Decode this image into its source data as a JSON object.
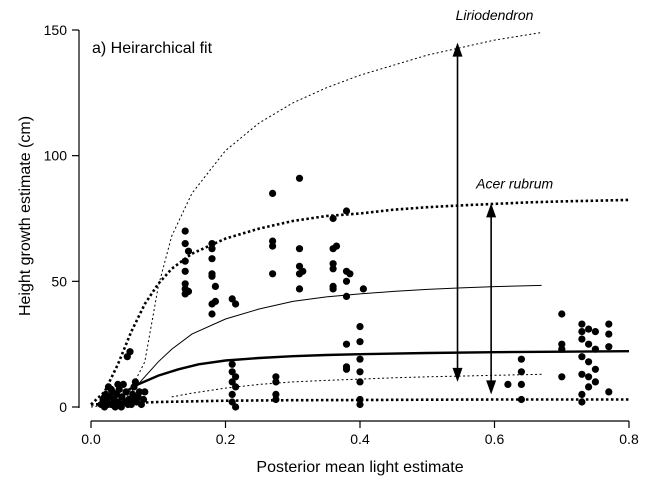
{
  "chart_data": {
    "type": "scatter",
    "title": "",
    "annotation": "a) Heirarchical fit",
    "xlabel": "Posterior mean light estimate",
    "ylabel": "Height growth estimate (cm)",
    "xlim": [
      0,
      0.8
    ],
    "ylim": [
      -5,
      150
    ],
    "xticks": [
      0.0,
      0.2,
      0.4,
      0.6,
      0.8
    ],
    "xtick_labels": [
      "0.0",
      "0.2",
      "0.4",
      "0.6",
      "0.8"
    ],
    "yticks": [
      0,
      50,
      100,
      150
    ],
    "ytick_labels": [
      "0",
      "50",
      "100",
      "150"
    ],
    "grid": false,
    "legend": "none",
    "curve_labels": [
      {
        "text": "Liriodendron",
        "x": 0.6,
        "y": 154
      },
      {
        "text": "Acer rubrum",
        "x": 0.63,
        "y": 87
      }
    ],
    "series": [
      {
        "style": "dotted-thin",
        "values": [
          [
            0.0,
            0
          ],
          [
            0.05,
            2
          ],
          [
            0.08,
            18
          ],
          [
            0.1,
            48
          ],
          [
            0.12,
            68
          ],
          [
            0.15,
            85
          ],
          [
            0.2,
            102
          ],
          [
            0.25,
            113
          ],
          [
            0.3,
            121
          ],
          [
            0.35,
            127
          ],
          [
            0.4,
            132
          ],
          [
            0.45,
            136
          ],
          [
            0.5,
            140
          ],
          [
            0.55,
            143
          ],
          [
            0.6,
            146
          ],
          [
            0.67,
            149
          ]
        ]
      },
      {
        "style": "dotted-thick",
        "values": [
          [
            0.0,
            1
          ],
          [
            0.02,
            6
          ],
          [
            0.04,
            17
          ],
          [
            0.06,
            30
          ],
          [
            0.08,
            41
          ],
          [
            0.1,
            49
          ],
          [
            0.12,
            55
          ],
          [
            0.15,
            61
          ],
          [
            0.2,
            67
          ],
          [
            0.25,
            71
          ],
          [
            0.3,
            74
          ],
          [
            0.35,
            76
          ],
          [
            0.4,
            77
          ],
          [
            0.45,
            78.5
          ],
          [
            0.5,
            79.5
          ],
          [
            0.55,
            80.2
          ],
          [
            0.6,
            80.8
          ],
          [
            0.65,
            81.4
          ],
          [
            0.7,
            81.8
          ],
          [
            0.75,
            82.1
          ],
          [
            0.8,
            82.4
          ]
        ]
      },
      {
        "style": "solid-thin",
        "values": [
          [
            0.06,
            6
          ],
          [
            0.08,
            12
          ],
          [
            0.1,
            18
          ],
          [
            0.12,
            23
          ],
          [
            0.15,
            29
          ],
          [
            0.2,
            35
          ],
          [
            0.25,
            39
          ],
          [
            0.3,
            42
          ],
          [
            0.35,
            43.8
          ],
          [
            0.4,
            45
          ],
          [
            0.45,
            46
          ],
          [
            0.5,
            46.8
          ],
          [
            0.55,
            47.4
          ],
          [
            0.6,
            47.9
          ],
          [
            0.67,
            48.4
          ]
        ]
      },
      {
        "style": "solid-thick",
        "values": [
          [
            0.05,
            6
          ],
          [
            0.07,
            9
          ],
          [
            0.1,
            12.5
          ],
          [
            0.13,
            15
          ],
          [
            0.16,
            17
          ],
          [
            0.2,
            18.5
          ],
          [
            0.25,
            19.5
          ],
          [
            0.3,
            20.2
          ],
          [
            0.35,
            20.7
          ],
          [
            0.4,
            21
          ],
          [
            0.5,
            21.5
          ],
          [
            0.6,
            21.8
          ],
          [
            0.7,
            22
          ],
          [
            0.8,
            22.2
          ]
        ]
      },
      {
        "style": "dotted-thin",
        "values": [
          [
            0.12,
            4
          ],
          [
            0.15,
            5.5
          ],
          [
            0.2,
            7.5
          ],
          [
            0.25,
            9
          ],
          [
            0.3,
            10
          ],
          [
            0.35,
            10.6
          ],
          [
            0.4,
            11.1
          ],
          [
            0.45,
            11.6
          ],
          [
            0.5,
            12
          ],
          [
            0.55,
            12.3
          ],
          [
            0.6,
            12.6
          ],
          [
            0.67,
            13
          ]
        ]
      },
      {
        "style": "dotted-thick",
        "values": [
          [
            0.0,
            1
          ],
          [
            0.1,
            2
          ],
          [
            0.2,
            2.5
          ],
          [
            0.3,
            2.7
          ],
          [
            0.4,
            2.8
          ],
          [
            0.5,
            2.9
          ],
          [
            0.6,
            3
          ],
          [
            0.7,
            3
          ],
          [
            0.8,
            3
          ]
        ]
      }
    ],
    "arrows": [
      {
        "x": 0.545,
        "y_from": 145,
        "y_to": 10
      },
      {
        "x": 0.595,
        "y_from": 81,
        "y_to": 5
      }
    ],
    "points": [
      [
        0.015,
        1
      ],
      [
        0.018,
        3
      ],
      [
        0.02,
        0
      ],
      [
        0.022,
        5
      ],
      [
        0.024,
        2
      ],
      [
        0.026,
        8
      ],
      [
        0.028,
        4
      ],
      [
        0.03,
        1
      ],
      [
        0.032,
        6
      ],
      [
        0.034,
        3
      ],
      [
        0.036,
        0
      ],
      [
        0.038,
        5
      ],
      [
        0.04,
        2
      ],
      [
        0.042,
        7
      ],
      [
        0.044,
        1
      ],
      [
        0.046,
        4
      ],
      [
        0.048,
        9
      ],
      [
        0.05,
        2
      ],
      [
        0.052,
        6
      ],
      [
        0.054,
        20
      ],
      [
        0.056,
        3
      ],
      [
        0.058,
        22
      ],
      [
        0.06,
        1
      ],
      [
        0.062,
        5
      ],
      [
        0.064,
        8
      ],
      [
        0.066,
        10
      ],
      [
        0.068,
        2
      ],
      [
        0.07,
        4
      ],
      [
        0.072,
        6
      ],
      [
        0.075,
        1
      ],
      [
        0.078,
        3
      ],
      [
        0.08,
        6
      ],
      [
        0.025,
        1
      ],
      [
        0.035,
        2
      ],
      [
        0.045,
        0
      ],
      [
        0.055,
        1
      ],
      [
        0.065,
        3
      ],
      [
        0.02,
        4
      ],
      [
        0.03,
        7
      ],
      [
        0.04,
        9
      ],
      [
        0.14,
        70
      ],
      [
        0.14,
        65
      ],
      [
        0.14,
        58
      ],
      [
        0.14,
        54
      ],
      [
        0.14,
        49
      ],
      [
        0.14,
        47
      ],
      [
        0.14,
        45
      ],
      [
        0.145,
        62
      ],
      [
        0.145,
        46
      ],
      [
        0.18,
        65
      ],
      [
        0.18,
        63
      ],
      [
        0.18,
        59
      ],
      [
        0.18,
        53
      ],
      [
        0.18,
        52
      ],
      [
        0.18,
        41
      ],
      [
        0.18,
        37
      ],
      [
        0.185,
        48
      ],
      [
        0.185,
        42
      ],
      [
        0.21,
        2
      ],
      [
        0.21,
        5
      ],
      [
        0.21,
        10
      ],
      [
        0.21,
        14
      ],
      [
        0.21,
        17
      ],
      [
        0.215,
        0
      ],
      [
        0.215,
        8
      ],
      [
        0.215,
        12
      ],
      [
        0.21,
        43
      ],
      [
        0.215,
        41
      ],
      [
        0.27,
        85
      ],
      [
        0.27,
        66
      ],
      [
        0.27,
        64
      ],
      [
        0.27,
        53
      ],
      [
        0.275,
        10
      ],
      [
        0.275,
        12
      ],
      [
        0.275,
        5
      ],
      [
        0.275,
        3
      ],
      [
        0.31,
        91
      ],
      [
        0.31,
        63
      ],
      [
        0.31,
        56
      ],
      [
        0.31,
        53
      ],
      [
        0.31,
        47
      ],
      [
        0.315,
        54
      ],
      [
        0.36,
        75
      ],
      [
        0.36,
        63
      ],
      [
        0.36,
        57
      ],
      [
        0.36,
        55
      ],
      [
        0.36,
        48
      ],
      [
        0.36,
        47
      ],
      [
        0.365,
        64
      ],
      [
        0.38,
        78
      ],
      [
        0.38,
        54
      ],
      [
        0.38,
        50
      ],
      [
        0.38,
        44
      ],
      [
        0.38,
        25
      ],
      [
        0.38,
        16
      ],
      [
        0.38,
        15
      ],
      [
        0.385,
        53
      ],
      [
        0.4,
        32
      ],
      [
        0.4,
        26
      ],
      [
        0.4,
        19
      ],
      [
        0.4,
        14
      ],
      [
        0.4,
        10
      ],
      [
        0.4,
        3
      ],
      [
        0.4,
        1
      ],
      [
        0.405,
        47
      ],
      [
        0.62,
        9
      ],
      [
        0.64,
        19
      ],
      [
        0.64,
        14
      ],
      [
        0.64,
        9
      ],
      [
        0.64,
        3
      ],
      [
        0.7,
        37
      ],
      [
        0.7,
        25
      ],
      [
        0.7,
        23
      ],
      [
        0.7,
        12
      ],
      [
        0.73,
        33
      ],
      [
        0.73,
        30
      ],
      [
        0.73,
        27
      ],
      [
        0.73,
        20
      ],
      [
        0.73,
        13
      ],
      [
        0.73,
        5
      ],
      [
        0.73,
        2
      ],
      [
        0.74,
        31
      ],
      [
        0.74,
        25
      ],
      [
        0.74,
        18
      ],
      [
        0.74,
        12
      ],
      [
        0.74,
        8
      ],
      [
        0.75,
        30
      ],
      [
        0.75,
        23
      ],
      [
        0.75,
        15
      ],
      [
        0.75,
        10
      ],
      [
        0.77,
        33
      ],
      [
        0.77,
        29
      ],
      [
        0.77,
        24
      ],
      [
        0.77,
        6
      ]
    ]
  }
}
